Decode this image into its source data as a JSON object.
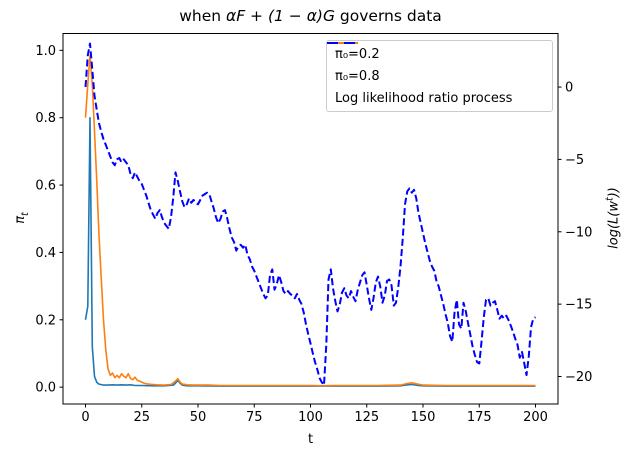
{
  "title": {
    "pre": "when ",
    "math": "αF + (1 − α)G",
    "post": " governs data"
  },
  "axes": {
    "xlabel": "t",
    "ylabel_left": {
      "main": "π",
      "sub": "t"
    },
    "ylabel_right": {
      "pre": "log(L(w",
      "sup": "t",
      "post": "))"
    }
  },
  "legend": [
    {
      "label": "π₀=0.2",
      "color": "#1f77b4"
    },
    {
      "label": "π₀=0.8",
      "color": "#ff7f0e"
    },
    {
      "label": "Log likelihood ratio process",
      "color": "#0000ff",
      "dash": "11 6"
    }
  ],
  "chart_data": {
    "type": "line",
    "title": "when αF + (1 − α)G governs data",
    "xlabel": "t",
    "ylabel_left": "π_t",
    "ylabel_right": "log(L(w^t))",
    "xlim": [
      -10,
      210
    ],
    "ylim_left": [
      -0.05,
      1.05
    ],
    "ylim_right": [
      -21.9,
      3.7
    ],
    "x_ticks": [
      0,
      25,
      50,
      75,
      100,
      125,
      150,
      175,
      200
    ],
    "y_ticks_left": [
      0.0,
      0.2,
      0.4,
      0.6,
      0.8,
      1.0
    ],
    "y_ticks_right": [
      0,
      -5,
      -10,
      -15,
      -20
    ],
    "grid": false,
    "legend_position": "upper right",
    "series": [
      {
        "name": "π₀=0.2",
        "axis": "left",
        "color": "#1f77b4",
        "style": "solid",
        "points": [
          [
            0,
            0.2
          ],
          [
            1,
            0.24
          ],
          [
            2,
            0.8
          ],
          [
            3,
            0.12
          ],
          [
            4,
            0.032
          ],
          [
            5,
            0.014
          ],
          [
            6,
            0.009
          ],
          [
            8,
            0.006
          ],
          [
            10,
            0.006
          ],
          [
            12,
            0.007
          ],
          [
            14,
            0.006
          ],
          [
            16,
            0.007
          ],
          [
            18,
            0.006
          ],
          [
            20,
            0.007
          ],
          [
            22,
            0.005
          ],
          [
            25,
            0.005
          ],
          [
            30,
            0.004
          ],
          [
            35,
            0.004
          ],
          [
            39,
            0.006
          ],
          [
            40,
            0.012
          ],
          [
            41,
            0.02
          ],
          [
            42,
            0.012
          ],
          [
            43,
            0.006
          ],
          [
            45,
            0.004
          ],
          [
            50,
            0.004
          ],
          [
            60,
            0.003
          ],
          [
            70,
            0.003
          ],
          [
            80,
            0.003
          ],
          [
            90,
            0.003
          ],
          [
            100,
            0.003
          ],
          [
            110,
            0.003
          ],
          [
            120,
            0.003
          ],
          [
            130,
            0.003
          ],
          [
            140,
            0.004
          ],
          [
            143,
            0.007
          ],
          [
            145,
            0.008
          ],
          [
            148,
            0.005
          ],
          [
            150,
            0.004
          ],
          [
            160,
            0.003
          ],
          [
            170,
            0.003
          ],
          [
            180,
            0.003
          ],
          [
            190,
            0.003
          ],
          [
            200,
            0.003
          ]
        ]
      },
      {
        "name": "π₀=0.8",
        "axis": "left",
        "color": "#ff7f0e",
        "style": "solid",
        "points": [
          [
            0,
            0.8
          ],
          [
            1,
            0.9
          ],
          [
            2,
            0.985
          ],
          [
            3,
            0.9
          ],
          [
            4,
            0.76
          ],
          [
            5,
            0.61
          ],
          [
            6,
            0.45
          ],
          [
            7,
            0.32
          ],
          [
            8,
            0.2
          ],
          [
            9,
            0.11
          ],
          [
            10,
            0.055
          ],
          [
            11,
            0.035
          ],
          [
            12,
            0.042
          ],
          [
            13,
            0.028
          ],
          [
            14,
            0.035
          ],
          [
            15,
            0.028
          ],
          [
            16,
            0.04
          ],
          [
            17,
            0.032
          ],
          [
            18,
            0.028
          ],
          [
            19,
            0.04
          ],
          [
            20,
            0.026
          ],
          [
            21,
            0.022
          ],
          [
            22,
            0.03
          ],
          [
            23,
            0.02
          ],
          [
            24,
            0.018
          ],
          [
            25,
            0.015
          ],
          [
            26,
            0.012
          ],
          [
            27,
            0.01
          ],
          [
            28,
            0.009
          ],
          [
            30,
            0.008
          ],
          [
            32,
            0.007
          ],
          [
            35,
            0.006
          ],
          [
            38,
            0.008
          ],
          [
            40,
            0.018
          ],
          [
            41,
            0.025
          ],
          [
            42,
            0.015
          ],
          [
            43,
            0.009
          ],
          [
            45,
            0.007
          ],
          [
            48,
            0.006
          ],
          [
            50,
            0.006
          ],
          [
            55,
            0.006
          ],
          [
            60,
            0.005
          ],
          [
            70,
            0.005
          ],
          [
            80,
            0.005
          ],
          [
            90,
            0.005
          ],
          [
            100,
            0.005
          ],
          [
            105,
            0.004
          ],
          [
            110,
            0.005
          ],
          [
            120,
            0.005
          ],
          [
            130,
            0.005
          ],
          [
            140,
            0.006
          ],
          [
            143,
            0.011
          ],
          [
            145,
            0.013
          ],
          [
            147,
            0.01
          ],
          [
            150,
            0.006
          ],
          [
            160,
            0.005
          ],
          [
            170,
            0.005
          ],
          [
            180,
            0.005
          ],
          [
            190,
            0.005
          ],
          [
            200,
            0.005
          ]
        ]
      },
      {
        "name": "Log likelihood ratio process",
        "axis": "right",
        "color": "#0000ff",
        "style": "dashed",
        "points": [
          [
            0,
            0.0
          ],
          [
            1,
            2.2
          ],
          [
            2,
            3.0
          ],
          [
            3,
            1.2
          ],
          [
            4,
            -0.6
          ],
          [
            5,
            -1.6
          ],
          [
            6,
            -2.5
          ],
          [
            7,
            -3.1
          ],
          [
            8,
            -3.6
          ],
          [
            9,
            -4.0
          ],
          [
            10,
            -4.4
          ],
          [
            11,
            -4.8
          ],
          [
            12,
            -5.2
          ],
          [
            13,
            -5.4
          ],
          [
            14,
            -5.0
          ],
          [
            15,
            -4.9
          ],
          [
            16,
            -5.2
          ],
          [
            17,
            -5.0
          ],
          [
            18,
            -5.2
          ],
          [
            19,
            -5.4
          ],
          [
            20,
            -6.0
          ],
          [
            21,
            -6.3
          ],
          [
            22,
            -5.9
          ],
          [
            23,
            -6.2
          ],
          [
            24,
            -6.5
          ],
          [
            25,
            -6.7
          ],
          [
            26,
            -7.1
          ],
          [
            27,
            -7.5
          ],
          [
            28,
            -8.0
          ],
          [
            29,
            -8.5
          ],
          [
            30,
            -8.8
          ],
          [
            31,
            -9.1
          ],
          [
            32,
            -8.7
          ],
          [
            33,
            -8.5
          ],
          [
            34,
            -9.0
          ],
          [
            35,
            -9.4
          ],
          [
            36,
            -9.6
          ],
          [
            37,
            -9.8
          ],
          [
            38,
            -9.0
          ],
          [
            39,
            -7.6
          ],
          [
            40,
            -5.9
          ],
          [
            41,
            -6.5
          ],
          [
            42,
            -7.2
          ],
          [
            43,
            -7.9
          ],
          [
            44,
            -8.3
          ],
          [
            45,
            -8.1
          ],
          [
            46,
            -7.7
          ],
          [
            47,
            -8.0
          ],
          [
            48,
            -7.8
          ],
          [
            49,
            -8.0
          ],
          [
            50,
            -8.1
          ],
          [
            51,
            -7.8
          ],
          [
            52,
            -7.5
          ],
          [
            53,
            -7.4
          ],
          [
            54,
            -7.3
          ],
          [
            55,
            -7.4
          ],
          [
            56,
            -7.9
          ],
          [
            57,
            -8.4
          ],
          [
            58,
            -9.0
          ],
          [
            59,
            -9.4
          ],
          [
            60,
            -9.1
          ],
          [
            61,
            -8.6
          ],
          [
            62,
            -8.5
          ],
          [
            63,
            -9.1
          ],
          [
            64,
            -9.8
          ],
          [
            65,
            -10.4
          ],
          [
            66,
            -10.7
          ],
          [
            67,
            -11.3
          ],
          [
            68,
            -11.0
          ],
          [
            69,
            -10.9
          ],
          [
            70,
            -11.1
          ],
          [
            71,
            -10.9
          ],
          [
            72,
            -11.6
          ],
          [
            73,
            -11.9
          ],
          [
            74,
            -12.4
          ],
          [
            75,
            -12.7
          ],
          [
            76,
            -13.1
          ],
          [
            77,
            -13.5
          ],
          [
            78,
            -13.9
          ],
          [
            79,
            -14.3
          ],
          [
            80,
            -14.6
          ],
          [
            81,
            -14.4
          ],
          [
            82,
            -13.0
          ],
          [
            83,
            -12.6
          ],
          [
            84,
            -14.0
          ],
          [
            85,
            -13.6
          ],
          [
            86,
            -13.0
          ],
          [
            87,
            -13.5
          ],
          [
            88,
            -14.1
          ],
          [
            89,
            -14.3
          ],
          [
            90,
            -14.1
          ],
          [
            91,
            -14.3
          ],
          [
            92,
            -14.4
          ],
          [
            93,
            -14.6
          ],
          [
            94,
            -14.3
          ],
          [
            95,
            -14.7
          ],
          [
            96,
            -15.0
          ],
          [
            97,
            -15.6
          ],
          [
            98,
            -16.4
          ],
          [
            99,
            -17.1
          ],
          [
            100,
            -17.7
          ],
          [
            101,
            -18.4
          ],
          [
            102,
            -19.0
          ],
          [
            103,
            -19.5
          ],
          [
            104,
            -20.1
          ],
          [
            105,
            -20.4
          ],
          [
            106,
            -20.6
          ],
          [
            107,
            -17.8
          ],
          [
            108,
            -13.3
          ],
          [
            109,
            -12.6
          ],
          [
            110,
            -13.9
          ],
          [
            111,
            -14.8
          ],
          [
            112,
            -15.5
          ],
          [
            113,
            -15.0
          ],
          [
            114,
            -14.2
          ],
          [
            115,
            -13.9
          ],
          [
            116,
            -14.4
          ],
          [
            117,
            -14.6
          ],
          [
            118,
            -14.1
          ],
          [
            119,
            -14.5
          ],
          [
            120,
            -14.8
          ],
          [
            121,
            -14.0
          ],
          [
            122,
            -13.5
          ],
          [
            123,
            -13.0
          ],
          [
            124,
            -12.8
          ],
          [
            125,
            -13.7
          ],
          [
            126,
            -14.6
          ],
          [
            127,
            -15.4
          ],
          [
            128,
            -14.6
          ],
          [
            129,
            -13.5
          ],
          [
            130,
            -13.1
          ],
          [
            131,
            -13.8
          ],
          [
            132,
            -14.9
          ],
          [
            133,
            -14.4
          ],
          [
            134,
            -13.4
          ],
          [
            135,
            -13.3
          ],
          [
            136,
            -13.7
          ],
          [
            137,
            -15.1
          ],
          [
            138,
            -14.9
          ],
          [
            139,
            -13.8
          ],
          [
            140,
            -12.4
          ],
          [
            141,
            -10.4
          ],
          [
            142,
            -8.1
          ],
          [
            143,
            -7.2
          ],
          [
            144,
            -7.0
          ],
          [
            145,
            -7.3
          ],
          [
            146,
            -7.1
          ],
          [
            147,
            -7.7
          ],
          [
            148,
            -8.7
          ],
          [
            149,
            -9.4
          ],
          [
            150,
            -10.1
          ],
          [
            151,
            -10.8
          ],
          [
            152,
            -11.4
          ],
          [
            153,
            -12.0
          ],
          [
            154,
            -12.4
          ],
          [
            155,
            -12.7
          ],
          [
            156,
            -13.4
          ],
          [
            157,
            -13.8
          ],
          [
            158,
            -14.4
          ],
          [
            159,
            -15.0
          ],
          [
            160,
            -15.7
          ],
          [
            161,
            -16.3
          ],
          [
            162,
            -17.2
          ],
          [
            163,
            -17.6
          ],
          [
            164,
            -15.6
          ],
          [
            165,
            -14.7
          ],
          [
            166,
            -16.4
          ],
          [
            167,
            -16.7
          ],
          [
            168,
            -14.9
          ],
          [
            169,
            -15.5
          ],
          [
            170,
            -16.3
          ],
          [
            171,
            -17.1
          ],
          [
            172,
            -17.9
          ],
          [
            173,
            -18.5
          ],
          [
            174,
            -19.0
          ],
          [
            175,
            -19.1
          ],
          [
            176,
            -17.6
          ],
          [
            177,
            -15.9
          ],
          [
            178,
            -14.7
          ],
          [
            179,
            -14.6
          ],
          [
            180,
            -15.1
          ],
          [
            181,
            -14.9
          ],
          [
            182,
            -14.8
          ],
          [
            183,
            -15.4
          ],
          [
            184,
            -16.0
          ],
          [
            185,
            -15.8
          ],
          [
            186,
            -16.0
          ],
          [
            187,
            -15.8
          ],
          [
            188,
            -16.1
          ],
          [
            189,
            -16.5
          ],
          [
            190,
            -16.9
          ],
          [
            191,
            -17.4
          ],
          [
            192,
            -17.8
          ],
          [
            193,
            -18.7
          ],
          [
            194,
            -18.3
          ],
          [
            195,
            -19.1
          ],
          [
            196,
            -19.9
          ],
          [
            197,
            -18.6
          ],
          [
            198,
            -16.6
          ],
          [
            199,
            -16.0
          ],
          [
            200,
            -15.9
          ]
        ]
      }
    ]
  }
}
